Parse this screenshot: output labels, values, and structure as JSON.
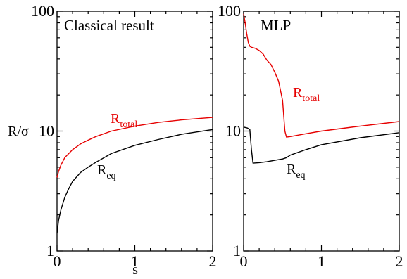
{
  "chart_data": [
    {
      "type": "line",
      "title": "Classical result",
      "xlabel": "s",
      "ylabel": "R/σ",
      "xlim": [
        0,
        2
      ],
      "ylim": [
        1,
        100
      ],
      "yscale": "log",
      "xticks": [
        "0",
        "1",
        "2"
      ],
      "yticks": [
        "1",
        "10",
        "100"
      ],
      "series": [
        {
          "name": "R_total",
          "label_main": "R",
          "label_sub": "total",
          "color": "#e60000",
          "x": [
            0.0,
            0.02,
            0.05,
            0.1,
            0.2,
            0.3,
            0.4,
            0.5,
            0.7,
            1.0,
            1.3,
            1.6,
            2.0
          ],
          "y": [
            4.1,
            4.6,
            5.2,
            6.0,
            7.0,
            7.8,
            8.4,
            9.0,
            10.0,
            11.0,
            11.8,
            12.4,
            13.0
          ]
        },
        {
          "name": "R_eq",
          "label_main": "R",
          "label_sub": "eq",
          "color": "#000000",
          "x": [
            0.0,
            0.02,
            0.05,
            0.1,
            0.15,
            0.2,
            0.3,
            0.4,
            0.5,
            0.7,
            1.0,
            1.3,
            1.6,
            2.0
          ],
          "y": [
            1.4,
            1.8,
            2.2,
            2.8,
            3.3,
            3.8,
            4.5,
            5.0,
            5.5,
            6.5,
            7.6,
            8.5,
            9.4,
            10.3
          ]
        }
      ]
    },
    {
      "type": "line",
      "title": "MLP",
      "xlabel": "",
      "ylabel": "",
      "xlim": [
        0,
        2
      ],
      "ylim": [
        1,
        100
      ],
      "yscale": "log",
      "xticks": [
        "0",
        "1",
        "2"
      ],
      "yticks": [
        "1",
        "10",
        "100"
      ],
      "series": [
        {
          "name": "R_total",
          "label_main": "R",
          "label_sub": "total",
          "color": "#e60000",
          "x": [
            0.0,
            0.02,
            0.04,
            0.06,
            0.08,
            0.1,
            0.15,
            0.2,
            0.25,
            0.3,
            0.35,
            0.4,
            0.45,
            0.5,
            0.53,
            0.55,
            0.6,
            0.8,
            1.0,
            1.5,
            2.0
          ],
          "y": [
            95,
            80,
            65,
            55,
            51,
            50,
            49,
            47,
            44,
            39,
            36,
            31,
            26,
            18,
            10,
            8.9,
            9.0,
            9.5,
            10.0,
            11.0,
            12.0
          ]
        },
        {
          "name": "R_eq",
          "label_main": "R",
          "label_sub": "eq",
          "color": "#000000",
          "x": [
            0.0,
            0.05,
            0.08,
            0.1,
            0.12,
            0.2,
            0.3,
            0.4,
            0.5,
            0.55,
            0.6,
            0.8,
            1.0,
            1.5,
            2.0
          ],
          "y": [
            10.8,
            10.6,
            10.3,
            7.0,
            5.4,
            5.45,
            5.55,
            5.7,
            5.85,
            6.0,
            6.3,
            7.0,
            7.7,
            8.8,
            9.7
          ]
        }
      ]
    }
  ]
}
